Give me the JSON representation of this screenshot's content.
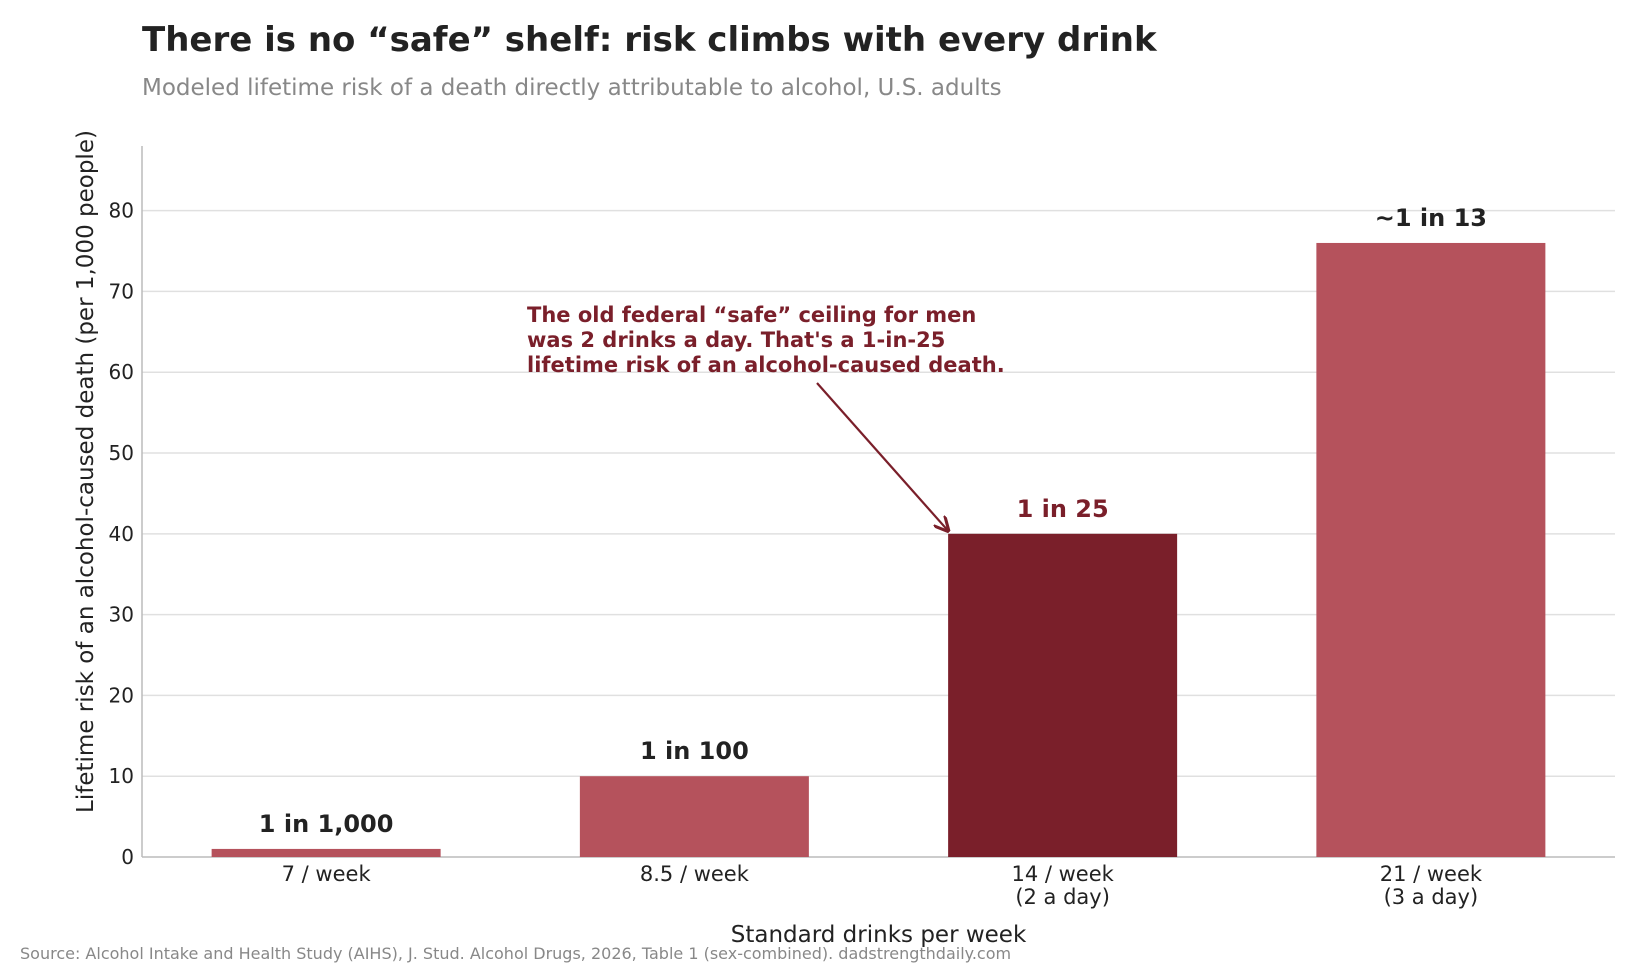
{
  "header": {
    "title": "There is no “safe” shelf: risk climbs with every drink",
    "subtitle": "Modeled lifetime risk of a death directly attributable to alcohol, U.S. adults"
  },
  "footer": {
    "source": "Source: Alcohol Intake and Health Study (AIHS), J. Stud. Alcohol Drugs, 2026, Table 1 (sex-combined).  dadstrengthdaily.com"
  },
  "chart_data": {
    "type": "bar",
    "categories": [
      [
        "7 / week"
      ],
      [
        "8.5 / week"
      ],
      [
        "14 / week",
        "(2 a day)"
      ],
      [
        "21 / week",
        "(3 a day)"
      ]
    ],
    "values": [
      1,
      10,
      40,
      76
    ],
    "data_labels": [
      "1 in 1,000",
      "1 in 100",
      "1 in 25",
      "~1 in 13"
    ],
    "highlight_index": 2,
    "xlabel": "Standard drinks per week",
    "ylabel": "Lifetime risk of an alcohol-caused death (per 1,000 people)",
    "ylim": [
      0,
      88
    ],
    "yticks": [
      0,
      10,
      20,
      30,
      40,
      50,
      60,
      70,
      80
    ],
    "grid": "horizontal",
    "colors": {
      "bar": "#b5525c",
      "highlight_bar": "#7a1f2a",
      "annotation": "#7a1f2a",
      "label": "#222222",
      "grid": "#e0e0e0",
      "axis": "#bbbbbb"
    },
    "annotation": {
      "lines": [
        "The old federal “safe” ceiling for men",
        "was 2 drinks a day. That's a 1-in-25",
        "lifetime risk of an alcohol-caused death."
      ],
      "points_to_index": 2
    }
  }
}
